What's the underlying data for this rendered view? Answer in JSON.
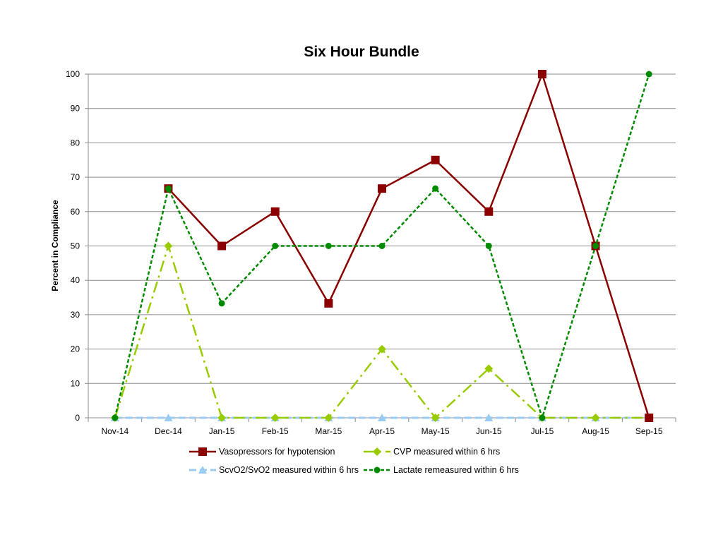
{
  "chart_data": {
    "type": "line",
    "title": "Six Hour Bundle",
    "xlabel": "",
    "ylabel": "Percent in Compliance",
    "ylim": [
      0,
      100
    ],
    "yticks": [
      0,
      10,
      20,
      30,
      40,
      50,
      60,
      70,
      80,
      90,
      100
    ],
    "grid": true,
    "legend_position": "bottom",
    "categories": [
      "Nov-14",
      "Dec-14",
      "Jan-15",
      "Feb-15",
      "Mar-15",
      "Apr-15",
      "May-15",
      "Jun-15",
      "Jul-15",
      "Aug-15",
      "Sep-15"
    ],
    "series": [
      {
        "name": "Vasopressors for hypotension",
        "color": "#8b0000",
        "marker": "square",
        "line": "solid",
        "values": [
          null,
          66.7,
          50,
          60,
          33.3,
          66.7,
          75,
          60,
          100,
          50,
          0
        ]
      },
      {
        "name": "CVP measured within 6 hrs",
        "color": "#99cc00",
        "marker": "diamond",
        "line": "dashdot",
        "values": [
          0,
          50,
          0,
          0,
          0,
          20,
          0,
          14.3,
          0,
          0,
          0
        ]
      },
      {
        "name": "ScvO2/SvO2 measured within 6 hrs",
        "color": "#99ccf2",
        "marker": "triangle",
        "line": "dashed",
        "values": [
          0,
          0,
          0,
          0,
          0,
          0,
          0,
          0,
          0,
          0,
          0
        ]
      },
      {
        "name": "Lactate remeasured within 6 hrs",
        "color": "#008a00",
        "marker": "circle",
        "line": "dotted",
        "values": [
          0,
          66.7,
          33.3,
          50,
          50,
          50,
          66.7,
          50,
          0,
          50,
          100
        ]
      }
    ]
  }
}
